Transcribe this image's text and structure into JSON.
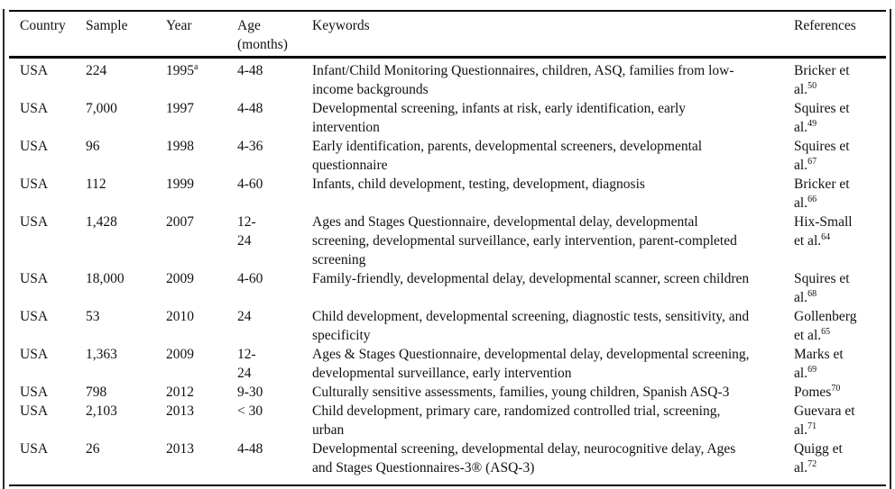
{
  "table": {
    "columns": [
      {
        "label": "Country"
      },
      {
        "label": "Sample"
      },
      {
        "label": "Year"
      },
      {
        "label": "Age (months)"
      },
      {
        "label": "Keywords"
      },
      {
        "label": "References"
      }
    ],
    "rows": [
      {
        "country": "USA",
        "sample": "224",
        "year": "1995",
        "year_sup": "a",
        "age": "4-48",
        "keywords": "Infant/Child Monitoring Questionnaires, children, ASQ, families from low-income backgrounds",
        "ref": "Bricker et\nal.",
        "ref_sup": "50"
      },
      {
        "country": "USA",
        "sample": "7,000",
        "year": "1997",
        "year_sup": "",
        "age": "4-48",
        "keywords": "Developmental screening, infants at risk, early identification, early intervention",
        "ref": "Squires et\nal.",
        "ref_sup": "49"
      },
      {
        "country": "USA",
        "sample": "96",
        "year": "1998",
        "year_sup": "",
        "age": "4-36",
        "keywords": "Early identification, parents, developmental screeners, developmental questionnaire",
        "ref": "Squires et\nal.",
        "ref_sup": "67"
      },
      {
        "country": "USA",
        "sample": "112",
        "year": "1999",
        "year_sup": "",
        "age": "4-60",
        "keywords": "Infants, child development, testing, development, diagnosis",
        "ref": "Bricker et\nal.",
        "ref_sup": "66"
      },
      {
        "country": "USA",
        "sample": "1,428",
        "year": "2007",
        "year_sup": "",
        "age": "12-\n24",
        "keywords": "Ages and Stages Questionnaire, developmental delay, developmental screening, developmental surveillance, early intervention, parent-completed screening",
        "ref": "Hix-Small\net al.",
        "ref_sup": "64"
      },
      {
        "country": "USA",
        "sample": "18,000",
        "year": "2009",
        "year_sup": "",
        "age": "4-60",
        "keywords": "Family-friendly, developmental delay, developmental scanner, screen children",
        "ref": "Squires et\nal.",
        "ref_sup": "68"
      },
      {
        "country": "USA",
        "sample": "53",
        "year": "2010",
        "year_sup": "",
        "age": "24",
        "keywords": "Child development, developmental screening, diagnostic tests, sensitivity, and specificity",
        "ref": "Gollenberg\net al.",
        "ref_sup": "65"
      },
      {
        "country": "USA",
        "sample": "1,363",
        "year": "2009",
        "year_sup": "",
        "age": "12-\n24",
        "keywords": "Ages & Stages Questionnaire, developmental delay, developmental screening, developmental surveillance, early intervention",
        "ref": "Marks et\nal.",
        "ref_sup": "69"
      },
      {
        "country": "USA",
        "sample": "798",
        "year": "2012",
        "year_sup": "",
        "age": "9-30",
        "keywords": "Culturally sensitive assessments, families, young children, Spanish ASQ-3",
        "ref": "Pomes",
        "ref_sup": "70"
      },
      {
        "country": "USA",
        "sample": "2,103",
        "year": "2013",
        "year_sup": "",
        "age": "< 30",
        "keywords": "Child development, primary care, randomized controlled trial, screening, urban",
        "ref": "Guevara et\nal.",
        "ref_sup": "71"
      },
      {
        "country": "USA",
        "sample": "26",
        "year": "2013",
        "year_sup": "",
        "age": "4-48",
        "keywords": "Developmental screening, developmental delay, neurocognitive delay, Ages and Stages Questionnaires-3® (ASQ-3)",
        "ref": "Quigg et\nal.",
        "ref_sup": "72"
      }
    ]
  }
}
